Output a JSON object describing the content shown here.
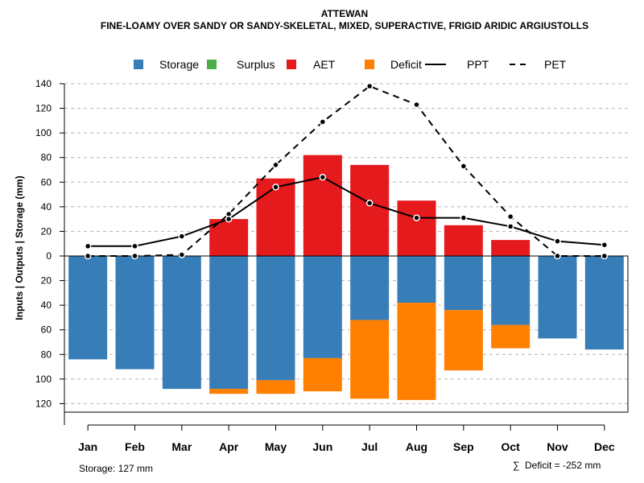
{
  "chart_data": {
    "type": "bar",
    "title": "ATTEWAN",
    "subtitle": "FINE-LOAMY OVER SANDY OR SANDY-SKELETAL, MIXED, SUPERACTIVE, FRIGID ARIDIC ARGIUSTOLLS",
    "ylabel": "Inputs | Outputs | Storage    (mm)",
    "ylim": [
      -127,
      140
    ],
    "yticks": [
      140,
      120,
      100,
      80,
      60,
      40,
      20,
      0,
      -20,
      -40,
      -60,
      -80,
      -100,
      -120
    ],
    "ytick_labels": [
      "140",
      "120",
      "100",
      "80",
      "60",
      "40",
      "20",
      "0",
      "20",
      "40",
      "60",
      "80",
      "100",
      "120"
    ],
    "grid": true,
    "categories": [
      "Jan",
      "Feb",
      "Mar",
      "Apr",
      "May",
      "Jun",
      "Jul",
      "Aug",
      "Sep",
      "Oct",
      "Nov",
      "Dec"
    ],
    "legend": {
      "placement": "top",
      "items": [
        {
          "label": "Storage",
          "kind": "box",
          "color": "#377EB8"
        },
        {
          "label": "Surplus",
          "kind": "box",
          "color": "#4DAF4A"
        },
        {
          "label": "AET",
          "kind": "box",
          "color": "#E41A1C"
        },
        {
          "label": "Deficit",
          "kind": "box",
          "color": "#FF7F00"
        },
        {
          "label": "PPT",
          "kind": "solid-line",
          "color": "#000000"
        },
        {
          "label": "PET",
          "kind": "dashed-line",
          "color": "#000000"
        }
      ]
    },
    "series": [
      {
        "name": "AET",
        "color": "#E41A1C",
        "values": [
          0,
          0,
          0,
          30,
          63,
          82,
          74,
          45,
          25,
          13,
          0,
          0
        ]
      },
      {
        "name": "Storage",
        "color": "#377EB8",
        "values": [
          84,
          92,
          108,
          108,
          101,
          83,
          52,
          38,
          44,
          56,
          67,
          76
        ]
      },
      {
        "name": "Deficit",
        "color": "#FF7F00",
        "values": [
          0,
          0,
          0,
          4,
          11,
          27,
          64,
          79,
          49,
          19,
          0,
          0
        ]
      },
      {
        "name": "Surplus",
        "color": "#4DAF4A",
        "values": [
          0,
          0,
          0,
          0,
          0,
          0,
          0,
          0,
          0,
          0,
          0,
          0
        ]
      },
      {
        "name": "PPT",
        "color": "#000000",
        "values": [
          8,
          8,
          16,
          30,
          56,
          64,
          43,
          31,
          31,
          24,
          12,
          9
        ]
      },
      {
        "name": "PET",
        "color": "#000000",
        "values": [
          0,
          0,
          1,
          34,
          74,
          109,
          138,
          123,
          73,
          32,
          0,
          0
        ]
      }
    ]
  },
  "footer": {
    "storage_text": "Storage: 127 mm",
    "deficit_symbol": "∑",
    "deficit_text": "Deficit = -252 mm"
  }
}
